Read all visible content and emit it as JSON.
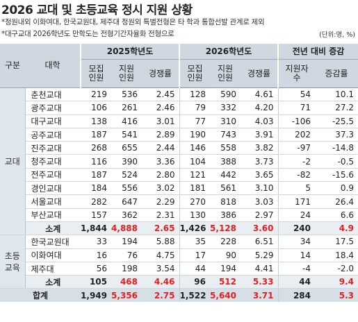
{
  "title": "2026 교대 및 초등교육 정시 지원 상황",
  "notes": [
    "*정원내외 이화여대, 한국교원대, 제주대 정원외 특별전형은 타 학과 통합선발 관계로 제외",
    "*대구교대 2026학년도 만학도는 전형기간자율화 전형으로"
  ],
  "unit": "(단위:명, %)",
  "headers": {
    "gubun": "구분",
    "school": "대학",
    "y2025": "2025학년도",
    "y2026": "2026학년도",
    "change": "전년 대비 증감",
    "recruit": "모집\n인원",
    "apply": "지원\n인원",
    "ratio": "경쟁률",
    "apply_count": "지원자\n수",
    "change_rate": "증감률"
  },
  "groups": [
    {
      "label": "교대",
      "rows": [
        {
          "school": "춘천교대",
          "r25": "219",
          "a25": "536",
          "c25": "2.45",
          "r26": "128",
          "a26": "590",
          "c26": "4.61",
          "d": "54",
          "p": "10.1"
        },
        {
          "school": "광주교대",
          "r25": "106",
          "a25": "261",
          "c25": "2.46",
          "r26": "79",
          "a26": "332",
          "c26": "4.20",
          "d": "71",
          "p": "27.2"
        },
        {
          "school": "대구교대",
          "r25": "138",
          "a25": "416",
          "c25": "3.01",
          "r26": "77",
          "a26": "310",
          "c26": "4.03",
          "d": "-106",
          "p": "-25.5"
        },
        {
          "school": "공주교대",
          "r25": "187",
          "a25": "541",
          "c25": "2.89",
          "r26": "190",
          "a26": "743",
          "c26": "3.91",
          "d": "202",
          "p": "37.3"
        },
        {
          "school": "진주교대",
          "r25": "268",
          "a25": "655",
          "c25": "2.44",
          "r26": "146",
          "a26": "558",
          "c26": "3.82",
          "d": "-97",
          "p": "-14.8"
        },
        {
          "school": "청주교대",
          "r25": "116",
          "a25": "390",
          "c25": "3.36",
          "r26": "104",
          "a26": "388",
          "c26": "3.73",
          "d": "-2",
          "p": "-0.5"
        },
        {
          "school": "전주교대",
          "r25": "187",
          "a25": "524",
          "c25": "2.80",
          "r26": "121",
          "a26": "442",
          "c26": "3.65",
          "d": "-82",
          "p": "-15.6"
        },
        {
          "school": "경인교대",
          "r25": "184",
          "a25": "556",
          "c25": "3.02",
          "r26": "181",
          "a26": "561",
          "c26": "3.10",
          "d": "5",
          "p": "0.9"
        },
        {
          "school": "서울교대",
          "r25": "282",
          "a25": "647",
          "c25": "2.29",
          "r26": "270",
          "a26": "818",
          "c26": "3.03",
          "d": "171",
          "p": "26.4"
        },
        {
          "school": "부산교대",
          "r25": "157",
          "a25": "362",
          "c25": "2.31",
          "r26": "130",
          "a26": "386",
          "c26": "2.97",
          "d": "24",
          "p": "6.6"
        }
      ],
      "subtotal": {
        "school": "소계",
        "r25": "1,844",
        "a25": "4,888",
        "c25": "2.65",
        "r26": "1,426",
        "a26": "5,128",
        "c26": "3.60",
        "d": "240",
        "p": "4.9"
      }
    },
    {
      "label": "초등\n교육",
      "rows": [
        {
          "school": "한국교원대",
          "r25": "33",
          "a25": "194",
          "c25": "5.88",
          "r26": "35",
          "a26": "228",
          "c26": "6.51",
          "d": "34",
          "p": "17.5"
        },
        {
          "school": "이화여대",
          "r25": "16",
          "a25": "76",
          "c25": "4.75",
          "r26": "17",
          "a26": "90",
          "c26": "5.29",
          "d": "14",
          "p": "18.4"
        },
        {
          "school": "제주대",
          "r25": "56",
          "a25": "198",
          "c25": "3.54",
          "r26": "44",
          "a26": "194",
          "c26": "4.41",
          "d": "-4",
          "p": "-2.0"
        }
      ],
      "subtotal": {
        "school": "소계",
        "r25": "105",
        "a25": "468",
        "c25": "4.46",
        "r26": "96",
        "a26": "512",
        "c26": "5.33",
        "d": "44",
        "p": "9.4"
      }
    }
  ],
  "total": {
    "school": "합계",
    "r25": "1,949",
    "a25": "5,356",
    "c25": "2.75",
    "r26": "1,522",
    "a26": "5,640",
    "c26": "3.71",
    "d": "284",
    "p": "5.3"
  },
  "colors": {
    "highlight": "#e02020",
    "header_bg": "#cfd8e0",
    "gubun_bg": "#dfe6ec"
  }
}
